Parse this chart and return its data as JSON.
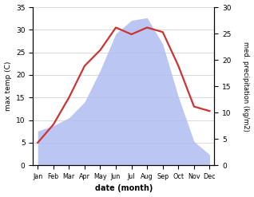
{
  "months": [
    "Jan",
    "Feb",
    "Mar",
    "Apr",
    "May",
    "Jun",
    "Jul",
    "Aug",
    "Sep",
    "Oct",
    "Nov",
    "Dec"
  ],
  "temperature": [
    5.0,
    9.0,
    15.0,
    22.0,
    25.5,
    30.5,
    29.0,
    30.5,
    29.5,
    22.0,
    13.0,
    12.0
  ],
  "precipitation": [
    6.5,
    7.5,
    9.0,
    12.0,
    18.0,
    25.0,
    27.5,
    28.0,
    23.0,
    13.0,
    4.5,
    2.0
  ],
  "temp_color": "#cc3333",
  "precip_color": "#b0bef0",
  "ylabel_left": "max temp (C)",
  "ylabel_right": "med. precipitation (kg/m2)",
  "xlabel": "date (month)",
  "ylim_left": [
    0,
    35
  ],
  "ylim_right": [
    0,
    30
  ],
  "yticks_left": [
    0,
    5,
    10,
    15,
    20,
    25,
    30,
    35
  ],
  "yticks_right": [
    0,
    5,
    10,
    15,
    20,
    25,
    30
  ],
  "bg_color": "#ffffff",
  "line_width": 1.6
}
